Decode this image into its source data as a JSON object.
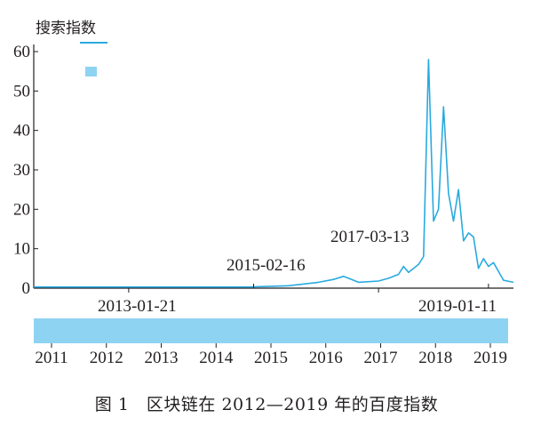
{
  "caption": "图 1　区块链在 2012—2019 年的百度指数",
  "chart_data": {
    "type": "line",
    "legend": [
      "搜索指数"
    ],
    "ylim": [
      0,
      60
    ],
    "y_ticks": [
      "0",
      "10",
      "20",
      "30",
      "40",
      "50",
      "60"
    ],
    "annotations": [
      "2013-01-21",
      "2015-02-16",
      "2017-03-13",
      "2019-01-11"
    ],
    "slider_years": [
      "2011",
      "2012",
      "2013",
      "2014",
      "2015",
      "2016",
      "2017",
      "2018",
      "2019"
    ],
    "x_date_start": "2011-06",
    "x_date_end": "2019-06",
    "series": [
      {
        "values": [
          [
            "2011-06",
            0.3
          ],
          [
            "2013-01",
            0.3
          ],
          [
            "2015-01",
            0.3
          ],
          [
            "2015-09",
            0.6
          ],
          [
            "2016-03",
            1.5
          ],
          [
            "2016-06",
            2.2
          ],
          [
            "2016-08",
            3.0
          ],
          [
            "2016-09",
            2.5
          ],
          [
            "2016-11",
            1.5
          ],
          [
            "2017-03",
            1.8
          ],
          [
            "2017-05",
            2.5
          ],
          [
            "2017-07",
            3.5
          ],
          [
            "2017-08",
            5.5
          ],
          [
            "2017-09",
            4.0
          ],
          [
            "2017-11",
            6.0
          ],
          [
            "2017-12",
            8.0
          ],
          [
            "2018-01",
            58.0
          ],
          [
            "2018-02",
            17.0
          ],
          [
            "2018-03",
            20.0
          ],
          [
            "2018-04",
            46.0
          ],
          [
            "2018-05",
            24.0
          ],
          [
            "2018-06",
            17.0
          ],
          [
            "2018-07",
            25.0
          ],
          [
            "2018-08",
            12.0
          ],
          [
            "2018-09",
            14.0
          ],
          [
            "2018-10",
            13.0
          ],
          [
            "2018-11",
            5.0
          ],
          [
            "2018-12",
            7.5
          ],
          [
            "2019-01",
            5.5
          ],
          [
            "2019-02",
            6.5
          ],
          [
            "2019-04",
            2.0
          ],
          [
            "2019-06",
            1.5
          ]
        ],
        "color": "#29aadf"
      }
    ],
    "accent_color": "#29aadf",
    "slider_color": "#8fd3f2"
  }
}
